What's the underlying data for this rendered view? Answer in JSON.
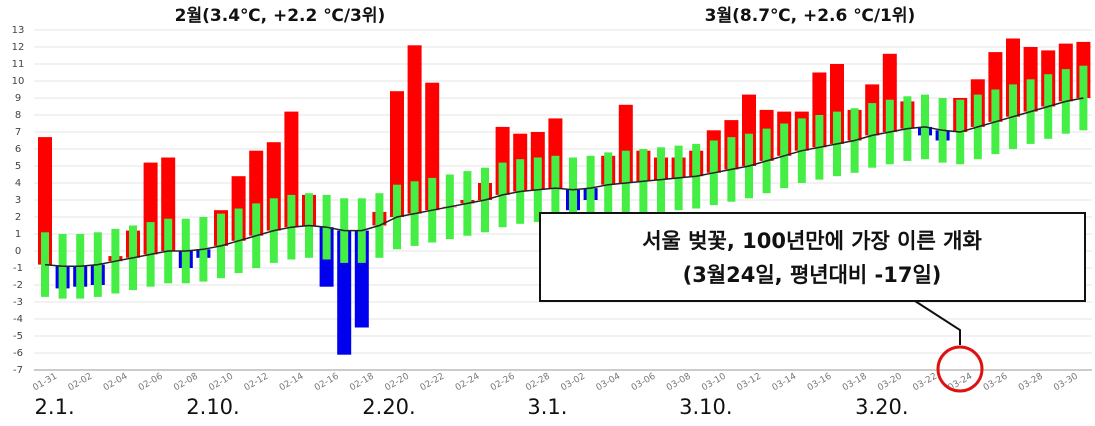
{
  "chart_data": {
    "type": "bar",
    "titles": [
      "2월(3.4℃, +2.2 ℃/3위)",
      "3월(8.7℃, +2.6 ℃/1위)"
    ],
    "x": [
      "01-31",
      null,
      "02-02",
      null,
      "02-04",
      null,
      "02-06",
      null,
      "02-08",
      null,
      "02-10",
      null,
      "02-12",
      null,
      "02-14",
      null,
      "02-16",
      null,
      "02-18",
      null,
      "02-20",
      null,
      "02-22",
      null,
      "02-24",
      null,
      "02-26",
      null,
      "02-28",
      null,
      "03-02",
      null,
      "03-04",
      null,
      "03-06",
      null,
      "03-08",
      null,
      "03-10",
      null,
      "03-12",
      null,
      "03-14",
      null,
      "03-16",
      null,
      "03-18",
      null,
      "03-20",
      null,
      "03-22",
      null,
      "03-24",
      null,
      "03-26",
      null,
      "03-28",
      null,
      "03-30",
      null
    ],
    "values": [
      6.7,
      -2.2,
      -2.1,
      -2.0,
      -0.3,
      1.2,
      5.2,
      5.5,
      -1.0,
      -0.4,
      2.4,
      4.4,
      5.9,
      6.4,
      8.2,
      3.3,
      -2.1,
      -6.1,
      -4.5,
      2.3,
      9.4,
      12.1,
      9.9,
      2.6,
      3.0,
      4.0,
      7.3,
      6.9,
      7.0,
      7.8,
      2.4,
      3.0,
      5.6,
      8.6,
      5.9,
      5.5,
      5.5,
      5.9,
      7.1,
      7.7,
      9.2,
      8.3,
      8.2,
      8.2,
      10.5,
      11.0,
      8.3,
      9.8,
      11.6,
      8.8,
      6.8,
      6.5,
      9.0,
      10.1,
      11.7,
      12.5,
      12.0,
      11.8,
      12.2,
      12.3
    ],
    "normal": [
      -0.8,
      -0.9,
      -0.9,
      -0.8,
      -0.6,
      -0.4,
      -0.2,
      0.0,
      0.0,
      0.1,
      0.3,
      0.6,
      0.9,
      1.2,
      1.4,
      1.5,
      1.4,
      1.2,
      1.2,
      1.5,
      2.0,
      2.2,
      2.4,
      2.6,
      2.8,
      3.0,
      3.3,
      3.5,
      3.6,
      3.7,
      3.6,
      3.7,
      3.9,
      4.0,
      4.1,
      4.2,
      4.3,
      4.4,
      4.6,
      4.8,
      5.0,
      5.3,
      5.6,
      5.9,
      6.1,
      6.3,
      6.5,
      6.8,
      7.0,
      7.2,
      7.3,
      7.1,
      7.0,
      7.3,
      7.6,
      7.9,
      8.2,
      8.5,
      8.8,
      9.0
    ],
    "normal_band": 1.9,
    "colors": {
      "above": "#ff0000",
      "below": "#0000ee",
      "band": "#44ee44",
      "normal": "#222222"
    },
    "ylim": [
      -7,
      13
    ],
    "yticks": [
      -7,
      -6,
      -5,
      -4,
      -3,
      -2,
      -1,
      0,
      1,
      2,
      3,
      4,
      5,
      6,
      7,
      8,
      9,
      10,
      11,
      12,
      13
    ],
    "grid": true,
    "period_labels": [
      "2.1.",
      "2.10.",
      "2.20.",
      "3.1.",
      "3.10.",
      "3.20."
    ],
    "annotation": [
      "서울 벚꽃, 100년만에 가장 이른 개화",
      "(3월24일, 평년대비 -17일)"
    ]
  }
}
